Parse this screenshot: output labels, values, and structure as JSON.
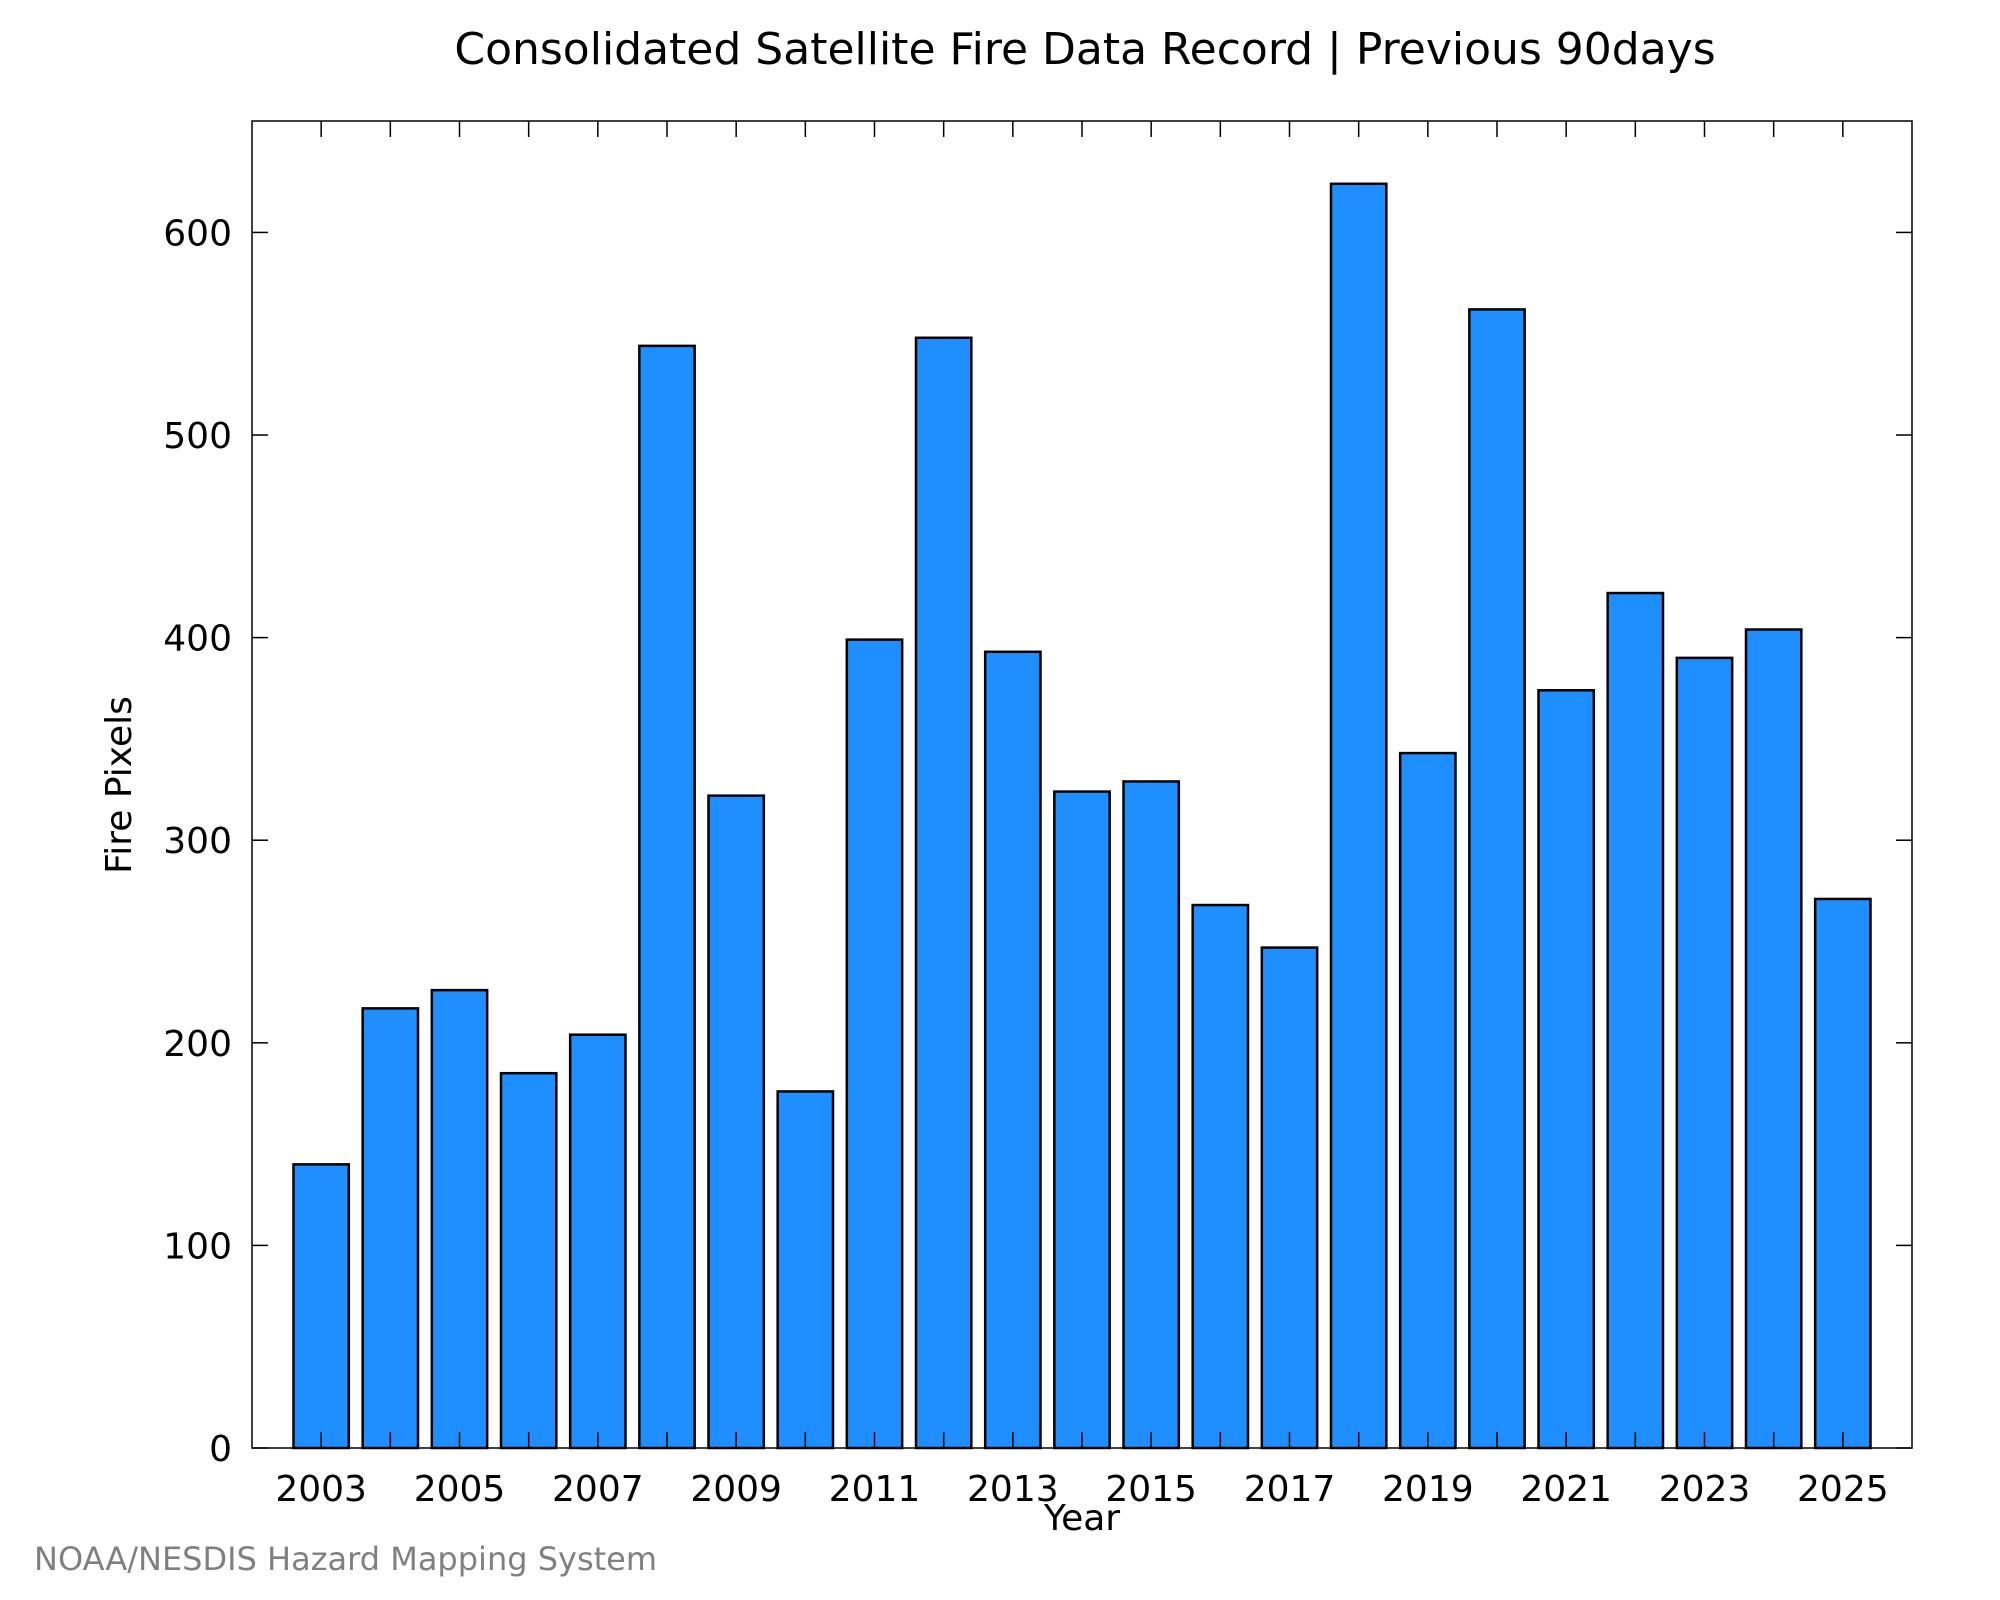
{
  "chart_data": {
    "type": "bar",
    "title": "Consolidated Satellite Fire Data Record | Previous 90days",
    "xlabel": "Year",
    "ylabel": "Fire Pixels",
    "ylim": [
      0,
      655
    ],
    "yticks": [
      0,
      100,
      200,
      300,
      400,
      500,
      600
    ],
    "xtick_labels": [
      "2003",
      "2005",
      "2007",
      "2009",
      "2011",
      "2013",
      "2015",
      "2017",
      "2019",
      "2021",
      "2023",
      "2025"
    ],
    "categories": [
      "2003",
      "2004",
      "2005",
      "2006",
      "2007",
      "2008",
      "2009",
      "2010",
      "2011",
      "2012",
      "2013",
      "2014",
      "2015",
      "2016",
      "2017",
      "2018",
      "2019",
      "2020",
      "2021",
      "2022",
      "2023",
      "2024",
      "2025"
    ],
    "values": [
      140,
      217,
      226,
      185,
      204,
      544,
      322,
      176,
      399,
      548,
      393,
      324,
      329,
      268,
      247,
      624,
      343,
      562,
      374,
      422,
      390,
      404,
      271
    ],
    "bar_color": "#1f8fff",
    "bar_edge_color": "#000000",
    "grid": false,
    "legend": "none"
  },
  "footer": {
    "credit": "NOAA/NESDIS Hazard Mapping System"
  }
}
